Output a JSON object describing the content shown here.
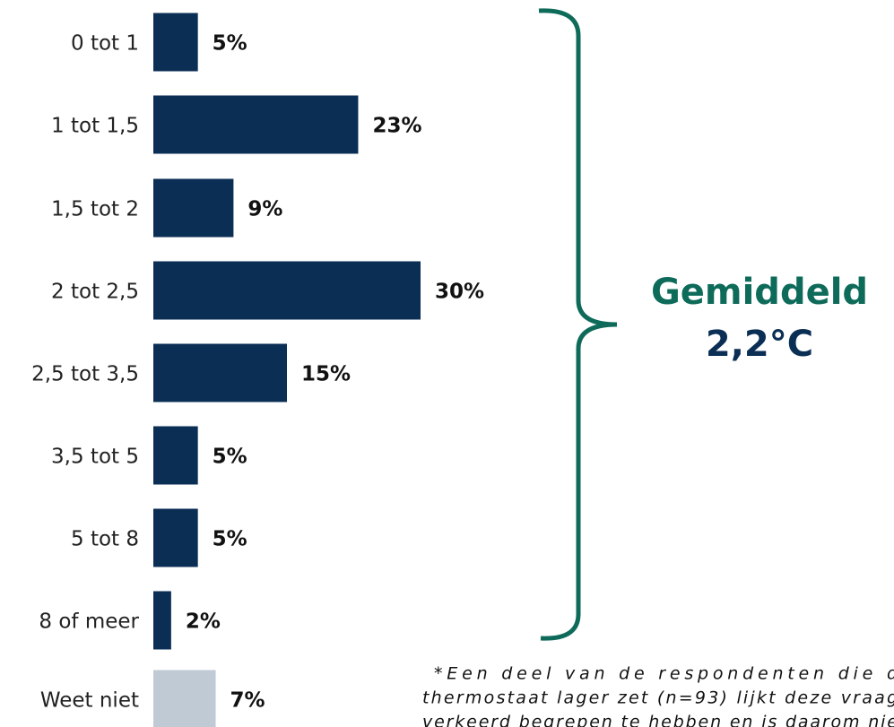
{
  "chart_data": {
    "type": "bar",
    "orientation": "horizontal",
    "categories": [
      "0 tot 1",
      "1 tot 1,5",
      "1,5 tot 2",
      "2 tot 2,5",
      "2,5 tot 3,5",
      "3,5 tot 5",
      "5 tot 8",
      "8 of meer",
      "Weet niet"
    ],
    "values": [
      5,
      23,
      9,
      30,
      15,
      5,
      5,
      2,
      7
    ],
    "value_labels": [
      "5%",
      "23%",
      "9%",
      "30%",
      "15%",
      "5%",
      "5%",
      "2%",
      "7%"
    ],
    "colors": [
      "#0b2e55",
      "#0b2e55",
      "#0b2e55",
      "#0b2e55",
      "#0b2e55",
      "#0b2e55",
      "#0b2e55",
      "#0b2e55",
      "#c0cad5"
    ],
    "annotation": "Gemiddeld",
    "annotation_value": "2,2°C",
    "footnote_lines": [
      "*Een deel van de respondenten die d",
      "thermostaat lager zet (n=93) lijkt deze vraag",
      "verkeerd begrepen te hebben en is daarom nie"
    ]
  }
}
